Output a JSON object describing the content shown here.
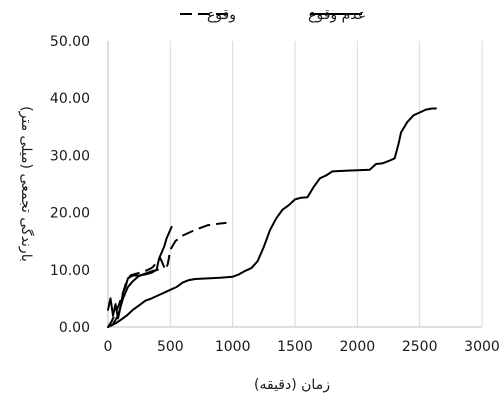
{
  "chart_data": {
    "type": "line",
    "title": "",
    "xlabel": "زمان (دقیقه)",
    "ylabel": "بارندگی تجمعی (میلی متر)",
    "xlim": [
      0,
      3000
    ],
    "ylim": [
      0,
      50
    ],
    "x_ticks": [
      "0",
      "500",
      "1000",
      "1500",
      "2000",
      "2500",
      "3000"
    ],
    "y_ticks": [
      "0.00",
      "10.00",
      "20.00",
      "30.00",
      "40.00",
      "50.00"
    ],
    "grid": "vertical",
    "legend_position": "top",
    "series": [
      {
        "name": "وقوع",
        "style": "dashed",
        "color": "#000000",
        "points": [
          [
            0,
            0
          ],
          [
            30,
            1
          ],
          [
            60,
            2.5
          ],
          [
            90,
            4
          ],
          [
            120,
            6
          ],
          [
            150,
            8
          ],
          [
            180,
            9
          ],
          [
            220,
            9.3
          ],
          [
            260,
            9.5
          ],
          [
            300,
            9.8
          ],
          [
            340,
            10.2
          ],
          [
            360,
            10.5
          ],
          [
            380,
            11
          ],
          [
            400,
            11.5
          ],
          [
            420,
            12
          ],
          [
            440,
            11
          ],
          [
            460,
            10
          ],
          [
            480,
            11
          ],
          [
            500,
            13.5
          ],
          [
            540,
            15
          ],
          [
            600,
            16
          ],
          [
            700,
            17
          ],
          [
            800,
            17.8
          ],
          [
            900,
            18.1
          ],
          [
            950,
            18.2
          ]
        ]
      },
      {
        "name": "عدم وقوع",
        "style": "solid",
        "color": "#000000",
        "points": [
          [
            0,
            0
          ],
          [
            50,
            0.5
          ],
          [
            100,
            1.2
          ],
          [
            150,
            2
          ],
          [
            200,
            3
          ],
          [
            250,
            3.8
          ],
          [
            300,
            4.6
          ],
          [
            350,
            5
          ],
          [
            400,
            5.5
          ],
          [
            450,
            6
          ],
          [
            500,
            6.5
          ],
          [
            550,
            7
          ],
          [
            600,
            7.8
          ],
          [
            650,
            8.2
          ],
          [
            700,
            8.4
          ],
          [
            800,
            8.5
          ],
          [
            900,
            8.6
          ],
          [
            1000,
            8.8
          ],
          [
            1050,
            9.2
          ],
          [
            1100,
            9.8
          ],
          [
            1150,
            10.3
          ],
          [
            1200,
            11.5
          ],
          [
            1250,
            14
          ],
          [
            1300,
            17
          ],
          [
            1350,
            19
          ],
          [
            1400,
            20.5
          ],
          [
            1450,
            21.3
          ],
          [
            1500,
            22.3
          ],
          [
            1550,
            22.6
          ],
          [
            1600,
            22.7
          ],
          [
            1650,
            24.5
          ],
          [
            1700,
            26
          ],
          [
            1750,
            26.5
          ],
          [
            1800,
            27.2
          ],
          [
            1900,
            27.3
          ],
          [
            2000,
            27.4
          ],
          [
            2100,
            27.5
          ],
          [
            2150,
            28.5
          ],
          [
            2200,
            28.6
          ],
          [
            2250,
            29
          ],
          [
            2300,
            29.5
          ],
          [
            2330,
            32
          ],
          [
            2350,
            34
          ],
          [
            2400,
            35.8
          ],
          [
            2450,
            37
          ],
          [
            2500,
            37.5
          ],
          [
            2550,
            38
          ],
          [
            2600,
            38.2
          ],
          [
            2630,
            38.2
          ]
        ]
      },
      {
        "name": "",
        "style": "solid",
        "color": "#000000",
        "points": [
          [
            0,
            3
          ],
          [
            20,
            5
          ],
          [
            40,
            2
          ],
          [
            60,
            4
          ],
          [
            80,
            1.5
          ],
          [
            100,
            3.5
          ],
          [
            120,
            6
          ],
          [
            140,
            7
          ],
          [
            160,
            8.5
          ],
          [
            200,
            9
          ],
          [
            250,
            9
          ],
          [
            300,
            9.2
          ],
          [
            350,
            9.5
          ],
          [
            390,
            10
          ],
          [
            410,
            12
          ],
          [
            430,
            13
          ],
          [
            450,
            14
          ],
          [
            470,
            15.5
          ],
          [
            490,
            16.5
          ],
          [
            510,
            17.5
          ]
        ]
      },
      {
        "name": "",
        "style": "solid",
        "color": "#000000",
        "points": [
          [
            0,
            0
          ],
          [
            40,
            0.5
          ],
          [
            80,
            2
          ],
          [
            120,
            5
          ],
          [
            160,
            7
          ],
          [
            200,
            8
          ],
          [
            240,
            8.8
          ],
          [
            280,
            9.2
          ],
          [
            320,
            9.5
          ],
          [
            360,
            9.8
          ],
          [
            400,
            10
          ]
        ]
      }
    ]
  }
}
